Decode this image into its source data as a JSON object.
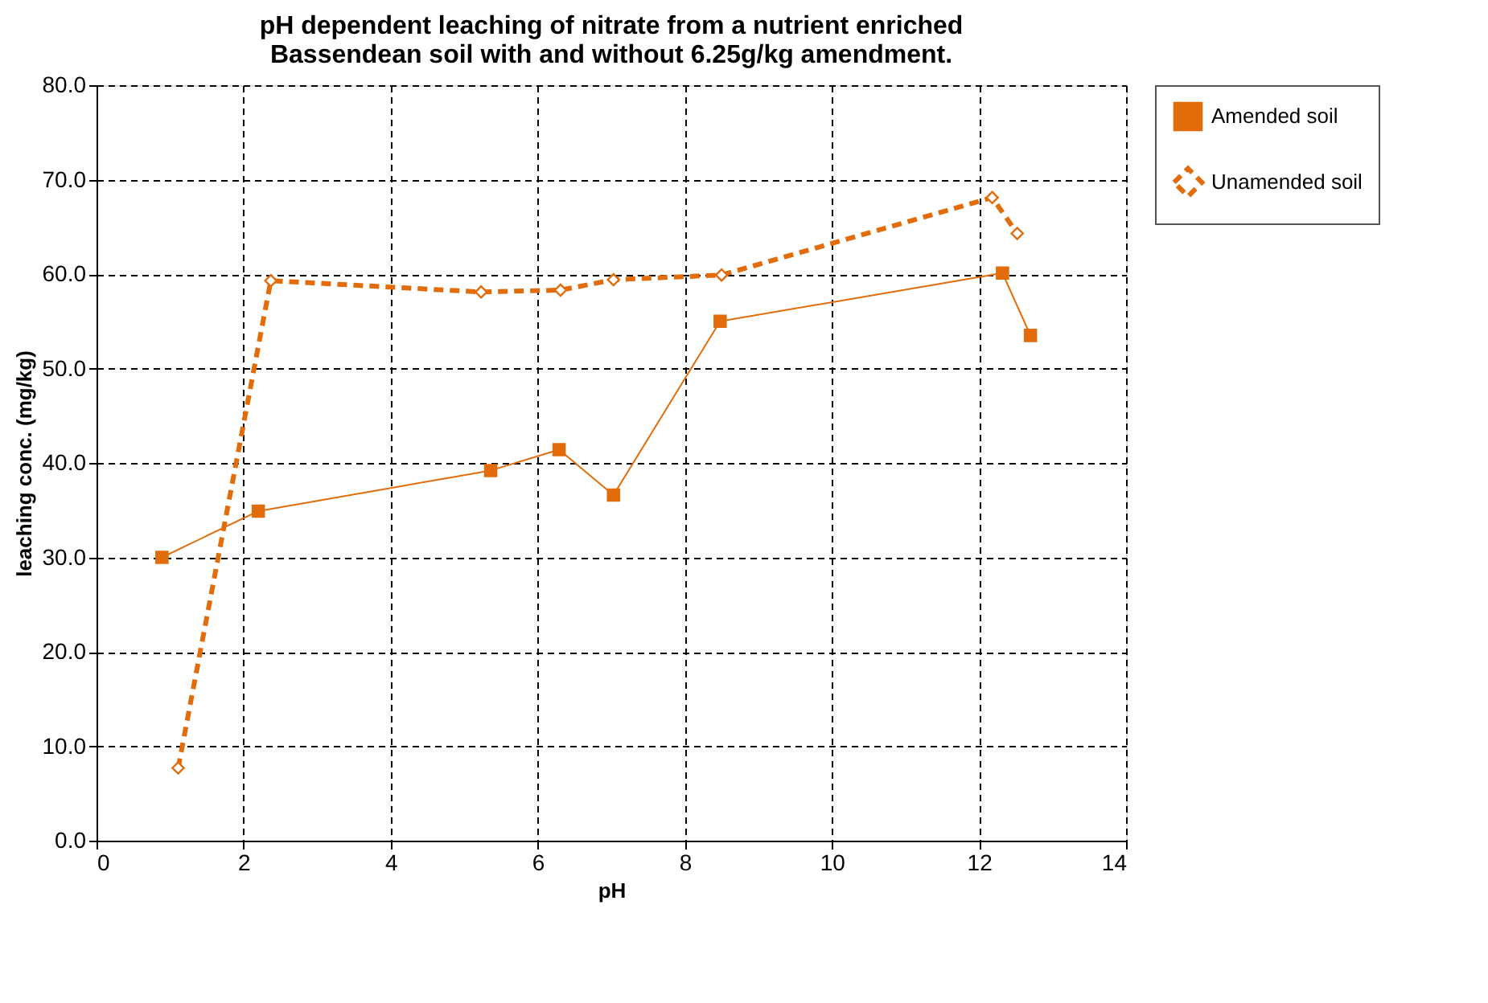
{
  "chart_data": {
    "type": "line",
    "title": [
      "pH dependent leaching of nitrate from a nutrient enriched",
      "Bassendean soil with and without 6.25g/kg amendment."
    ],
    "xlabel": "pH",
    "ylabel": "leaching conc. (mg/kg)",
    "xlim": [
      0,
      14
    ],
    "xticks": [
      0,
      2,
      4,
      6,
      8,
      10,
      12,
      14
    ],
    "ylim": [
      0,
      80
    ],
    "yticks": [
      {
        "value": 0,
        "label": "0.0"
      },
      {
        "value": 10,
        "label": "10.0"
      },
      {
        "value": 20,
        "label": "20.0"
      },
      {
        "value": 30,
        "label": "30.0"
      },
      {
        "value": 40,
        "label": "40.0"
      },
      {
        "value": 50,
        "label": "50.0"
      },
      {
        "value": 60,
        "label": "60.0"
      },
      {
        "value": 70,
        "label": "70.0"
      },
      {
        "value": 80,
        "label": "80.0"
      }
    ],
    "grid": true,
    "legend": "right",
    "series": [
      {
        "name": "Amended soil",
        "color": "#e36c0a",
        "marker": "square",
        "line_style": "solid",
        "x": [
          0.89,
          2.2,
          5.36,
          6.29,
          7.03,
          8.48,
          12.32,
          12.7
        ],
        "values": [
          30.0,
          34.9,
          39.2,
          41.4,
          36.6,
          55.0,
          60.1,
          53.5
        ]
      },
      {
        "name": "Unamended soil",
        "color": "#e36c0a",
        "marker": "diamond",
        "line_style": "dashed",
        "x": [
          1.11,
          2.37,
          5.23,
          6.31,
          7.03,
          8.5,
          12.18,
          12.52
        ],
        "values": [
          7.7,
          59.3,
          58.1,
          58.3,
          59.4,
          59.9,
          68.1,
          64.3
        ]
      }
    ]
  }
}
